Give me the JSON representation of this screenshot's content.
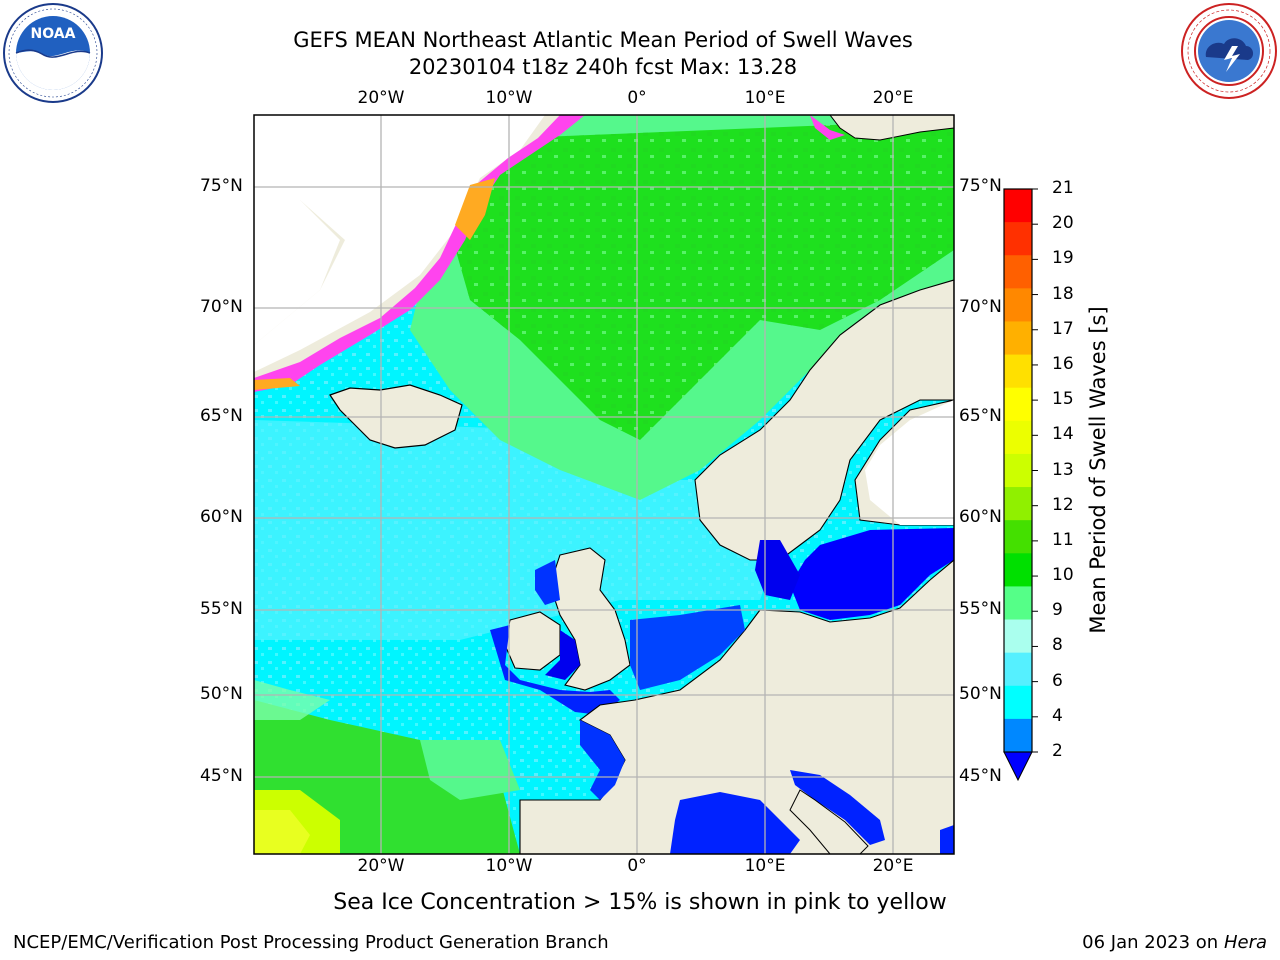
{
  "header": {
    "title_line1": "GEFS MEAN Northeast Atlantic Mean Period of Swell Waves",
    "title_line2": "20230104 t18z 240h fcst   Max: 13.28"
  },
  "logos": {
    "left": {
      "name": "noaa-logo",
      "text": "NOAA",
      "ring_text": "NATIONAL OCEANIC AND ATMOSPHERIC ADMINISTRATION · U.S. DEPARTMENT OF COMMERCE"
    },
    "right": {
      "name": "nws-logo",
      "ring_text": "NATIONAL WEATHER SERVICE"
    }
  },
  "map": {
    "lon_labels": [
      "20°W",
      "10°W",
      "0°",
      "10°E",
      "20°E"
    ],
    "lat_labels": [
      "75°N",
      "70°N",
      "65°N",
      "60°N",
      "55°N",
      "50°N",
      "45°N"
    ],
    "colors": {
      "land": "#eeecdc",
      "ice_pink": "#ff44ee",
      "ice_orange": "#ffaa22",
      "grid": "#b0b0b0",
      "coast": "#000000"
    }
  },
  "colorbar": {
    "label": "Mean Period of Swell Waves [s]",
    "ticks": [
      "21",
      "20",
      "19",
      "18",
      "17",
      "16",
      "15",
      "14",
      "13",
      "12",
      "11",
      "10",
      "9",
      "8",
      "6",
      "4",
      "2"
    ],
    "colors": [
      "#ff0000",
      "#ff3000",
      "#ff6000",
      "#ff8800",
      "#ffb000",
      "#ffe000",
      "#ffff00",
      "#ecff00",
      "#ccff00",
      "#90f000",
      "#44e000",
      "#00e000",
      "#55ff88",
      "#aaffee",
      "#55f0ff",
      "#00ffff",
      "#0088ff"
    ]
  },
  "note": "Sea Ice Concentration > 15% is shown in pink to yellow",
  "footer": {
    "left": "NCEP/EMC/Verification Post Processing Product Generation Branch",
    "date": "06 Jan 2023 on",
    "machine": "Hera"
  }
}
